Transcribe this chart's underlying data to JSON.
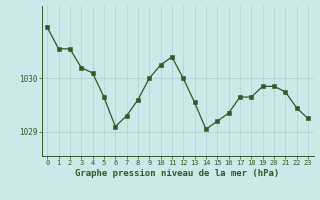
{
  "x": [
    0,
    1,
    2,
    3,
    4,
    5,
    6,
    7,
    8,
    9,
    10,
    11,
    12,
    13,
    14,
    15,
    16,
    17,
    18,
    19,
    20,
    21,
    22,
    23
  ],
  "y": [
    1030.95,
    1030.55,
    1030.55,
    1030.2,
    1030.1,
    1029.65,
    1029.1,
    1029.3,
    1029.6,
    1030.0,
    1030.25,
    1030.4,
    1030.0,
    1029.55,
    1029.05,
    1029.2,
    1029.35,
    1029.65,
    1029.65,
    1029.85,
    1029.85,
    1029.75,
    1029.45,
    1029.25
  ],
  "line_color": "#2d5a27",
  "marker_color": "#2d5a27",
  "bg_color": "#cce8e8",
  "grid_color": "#aad0d0",
  "axis_color": "#2d5a27",
  "xlabel": "Graphe pression niveau de la mer (hPa)",
  "ylim_min": 1028.55,
  "ylim_max": 1031.35,
  "ytick_positions": [
    1029.0,
    1030.0
  ],
  "ytick_labels": [
    "1029",
    "1030"
  ],
  "xtick_labels": [
    "0",
    "1",
    "2",
    "3",
    "4",
    "5",
    "6",
    "7",
    "8",
    "9",
    "10",
    "11",
    "12",
    "13",
    "14",
    "15",
    "16",
    "17",
    "18",
    "19",
    "20",
    "21",
    "22",
    "23"
  ],
  "tick_fontsize": 5.5,
  "xlabel_fontsize": 6.5
}
